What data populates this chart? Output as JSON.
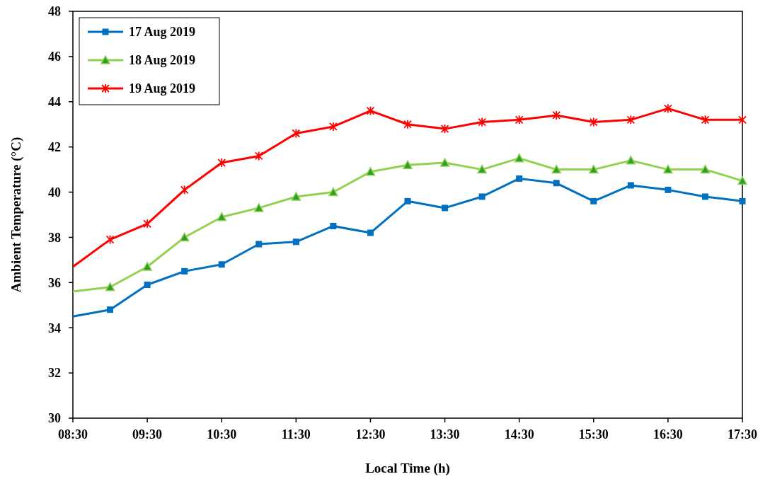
{
  "chart_data": {
    "type": "line",
    "xlabel": "Local Time (h)",
    "ylabel": "Ambient Temperature (°C)",
    "x": [
      8.5,
      9,
      9.5,
      10,
      10.5,
      11,
      11.5,
      12,
      12.5,
      13,
      13.5,
      14,
      14.5,
      15,
      15.5,
      16,
      16.5,
      17,
      17.5
    ],
    "xlim": [
      8.5,
      17.5
    ],
    "xticks": [
      {
        "value": 8.5,
        "label": "08:30"
      },
      {
        "value": 9.5,
        "label": "09:30"
      },
      {
        "value": 10.5,
        "label": "10:30"
      },
      {
        "value": 11.5,
        "label": "11:30"
      },
      {
        "value": 12.5,
        "label": "12:30"
      },
      {
        "value": 13.5,
        "label": "13:30"
      },
      {
        "value": 14.5,
        "label": "14:30"
      },
      {
        "value": 15.5,
        "label": "15:30"
      },
      {
        "value": 16.5,
        "label": "16:30"
      },
      {
        "value": 17.5,
        "label": "17:30"
      }
    ],
    "ylim": [
      30,
      48
    ],
    "yticks": [
      30,
      32,
      34,
      36,
      38,
      40,
      42,
      44,
      46,
      48
    ],
    "grid": false,
    "legend": "top left",
    "series": [
      {
        "name": "17 Aug 2019",
        "color": "#0070c0",
        "marker": "square",
        "values": [
          34.5,
          34.8,
          35.9,
          36.5,
          36.8,
          37.7,
          37.8,
          38.5,
          38.2,
          39.6,
          39.3,
          39.8,
          40.6,
          40.4,
          39.6,
          40.3,
          40.1,
          39.8,
          39.6
        ]
      },
      {
        "name": "18 Aug 2019",
        "color": "#92d050",
        "marker": "triangle",
        "values": [
          35.6,
          35.8,
          36.7,
          38.0,
          38.9,
          39.3,
          39.8,
          40.0,
          40.9,
          41.2,
          41.3,
          41.0,
          41.5,
          41.0,
          41.0,
          41.4,
          41.0,
          41.0,
          40.5
        ]
      },
      {
        "name": "19 Aug 2019",
        "color": "#ff0000",
        "marker": "cross",
        "values": [
          36.7,
          37.9,
          38.6,
          40.1,
          41.3,
          41.6,
          42.6,
          42.9,
          43.6,
          43.0,
          42.8,
          43.1,
          43.2,
          43.4,
          43.1,
          43.2,
          43.7,
          43.2,
          43.2
        ]
      }
    ]
  }
}
